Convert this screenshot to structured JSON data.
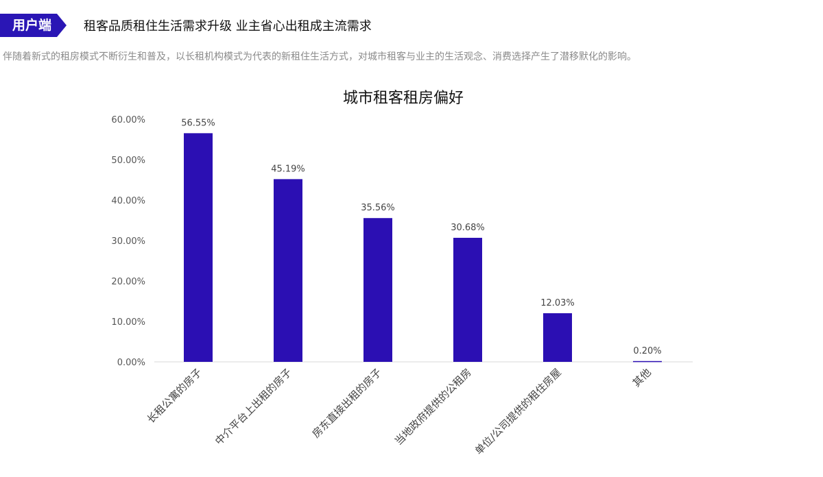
{
  "header": {
    "tag": "用户端",
    "headline": "租客品质租住生活需求升级 业主省心出租成主流需求",
    "description": "伴随着新式的租房模式不断衍生和普及，以长租机构模式为代表的新租住生活方式，对城市租客与业主的生活观念、消费选择产生了潜移默化的影响。"
  },
  "colors": {
    "accent": "#2a16b5",
    "bar": "#2b0fb3"
  },
  "chart_data": {
    "type": "bar",
    "title": "城市租客租房偏好",
    "categories": [
      "长租公寓的房子",
      "中介平台上出租的房子",
      "房东直接出租的房子",
      "当地政府提供的公租房",
      "单位/公司提供的租住房屋",
      "其他"
    ],
    "values": [
      56.55,
      45.19,
      35.56,
      30.68,
      12.03,
      0.2
    ],
    "value_labels": [
      "56.55%",
      "45.19%",
      "35.56%",
      "30.68%",
      "12.03%",
      "0.20%"
    ],
    "yticks": [
      "0.00%",
      "10.00%",
      "20.00%",
      "30.00%",
      "40.00%",
      "50.00%",
      "60.00%"
    ],
    "ylim": [
      0,
      60
    ],
    "grid": false,
    "legend": "none"
  }
}
